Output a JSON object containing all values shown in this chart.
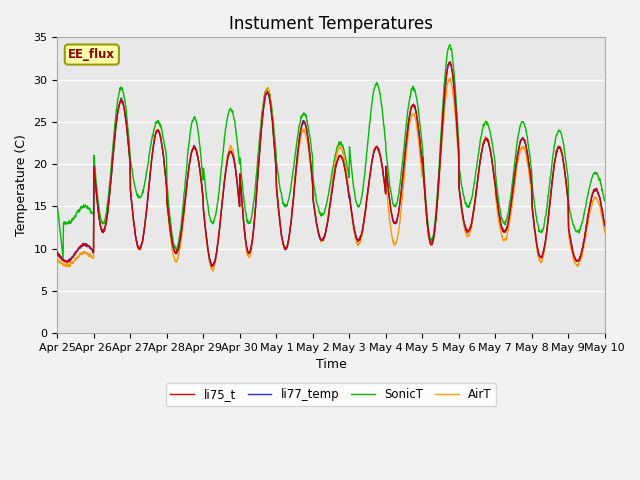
{
  "title": "Instument Temperatures",
  "xlabel": "Time",
  "ylabel": "Temperature (C)",
  "ylim": [
    0,
    35
  ],
  "yticks": [
    0,
    5,
    10,
    15,
    20,
    25,
    30,
    35
  ],
  "xtick_labels": [
    "Apr 25",
    "Apr 26",
    "Apr 27",
    "Apr 28",
    "Apr 29",
    "Apr 30",
    "May 1",
    "May 2",
    "May 3",
    "May 4",
    "May 5",
    "May 6",
    "May 7",
    "May 8",
    "May 9",
    "May 10"
  ],
  "annotation_text": "EE_flux",
  "colors": {
    "li75_t": "#cc0000",
    "li77_temp": "#3333cc",
    "SonicT": "#00bb00",
    "AirT": "#ff9900"
  },
  "plot_bg": "#e8e8e8",
  "fig_bg": "#f2f2f2",
  "grid_color": "#ffffff",
  "title_fontsize": 12,
  "axis_fontsize": 9,
  "tick_fontsize": 8,
  "linewidth": 1.0
}
